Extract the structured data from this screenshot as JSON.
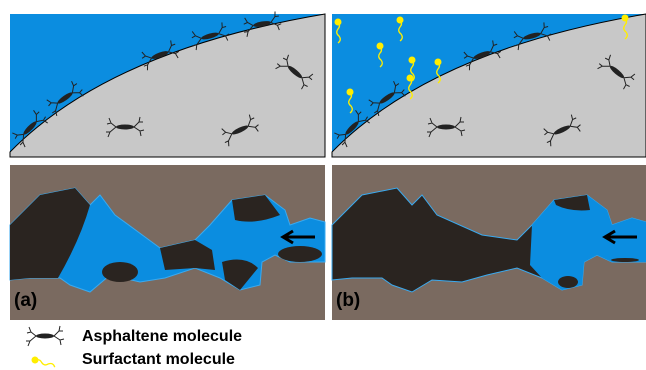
{
  "panels": [
    {
      "label": "(a)"
    },
    {
      "label": "(b)"
    }
  ],
  "legend": [
    {
      "label": "Asphaltene molecule"
    },
    {
      "label": "Surfactant molecule"
    }
  ]
}
